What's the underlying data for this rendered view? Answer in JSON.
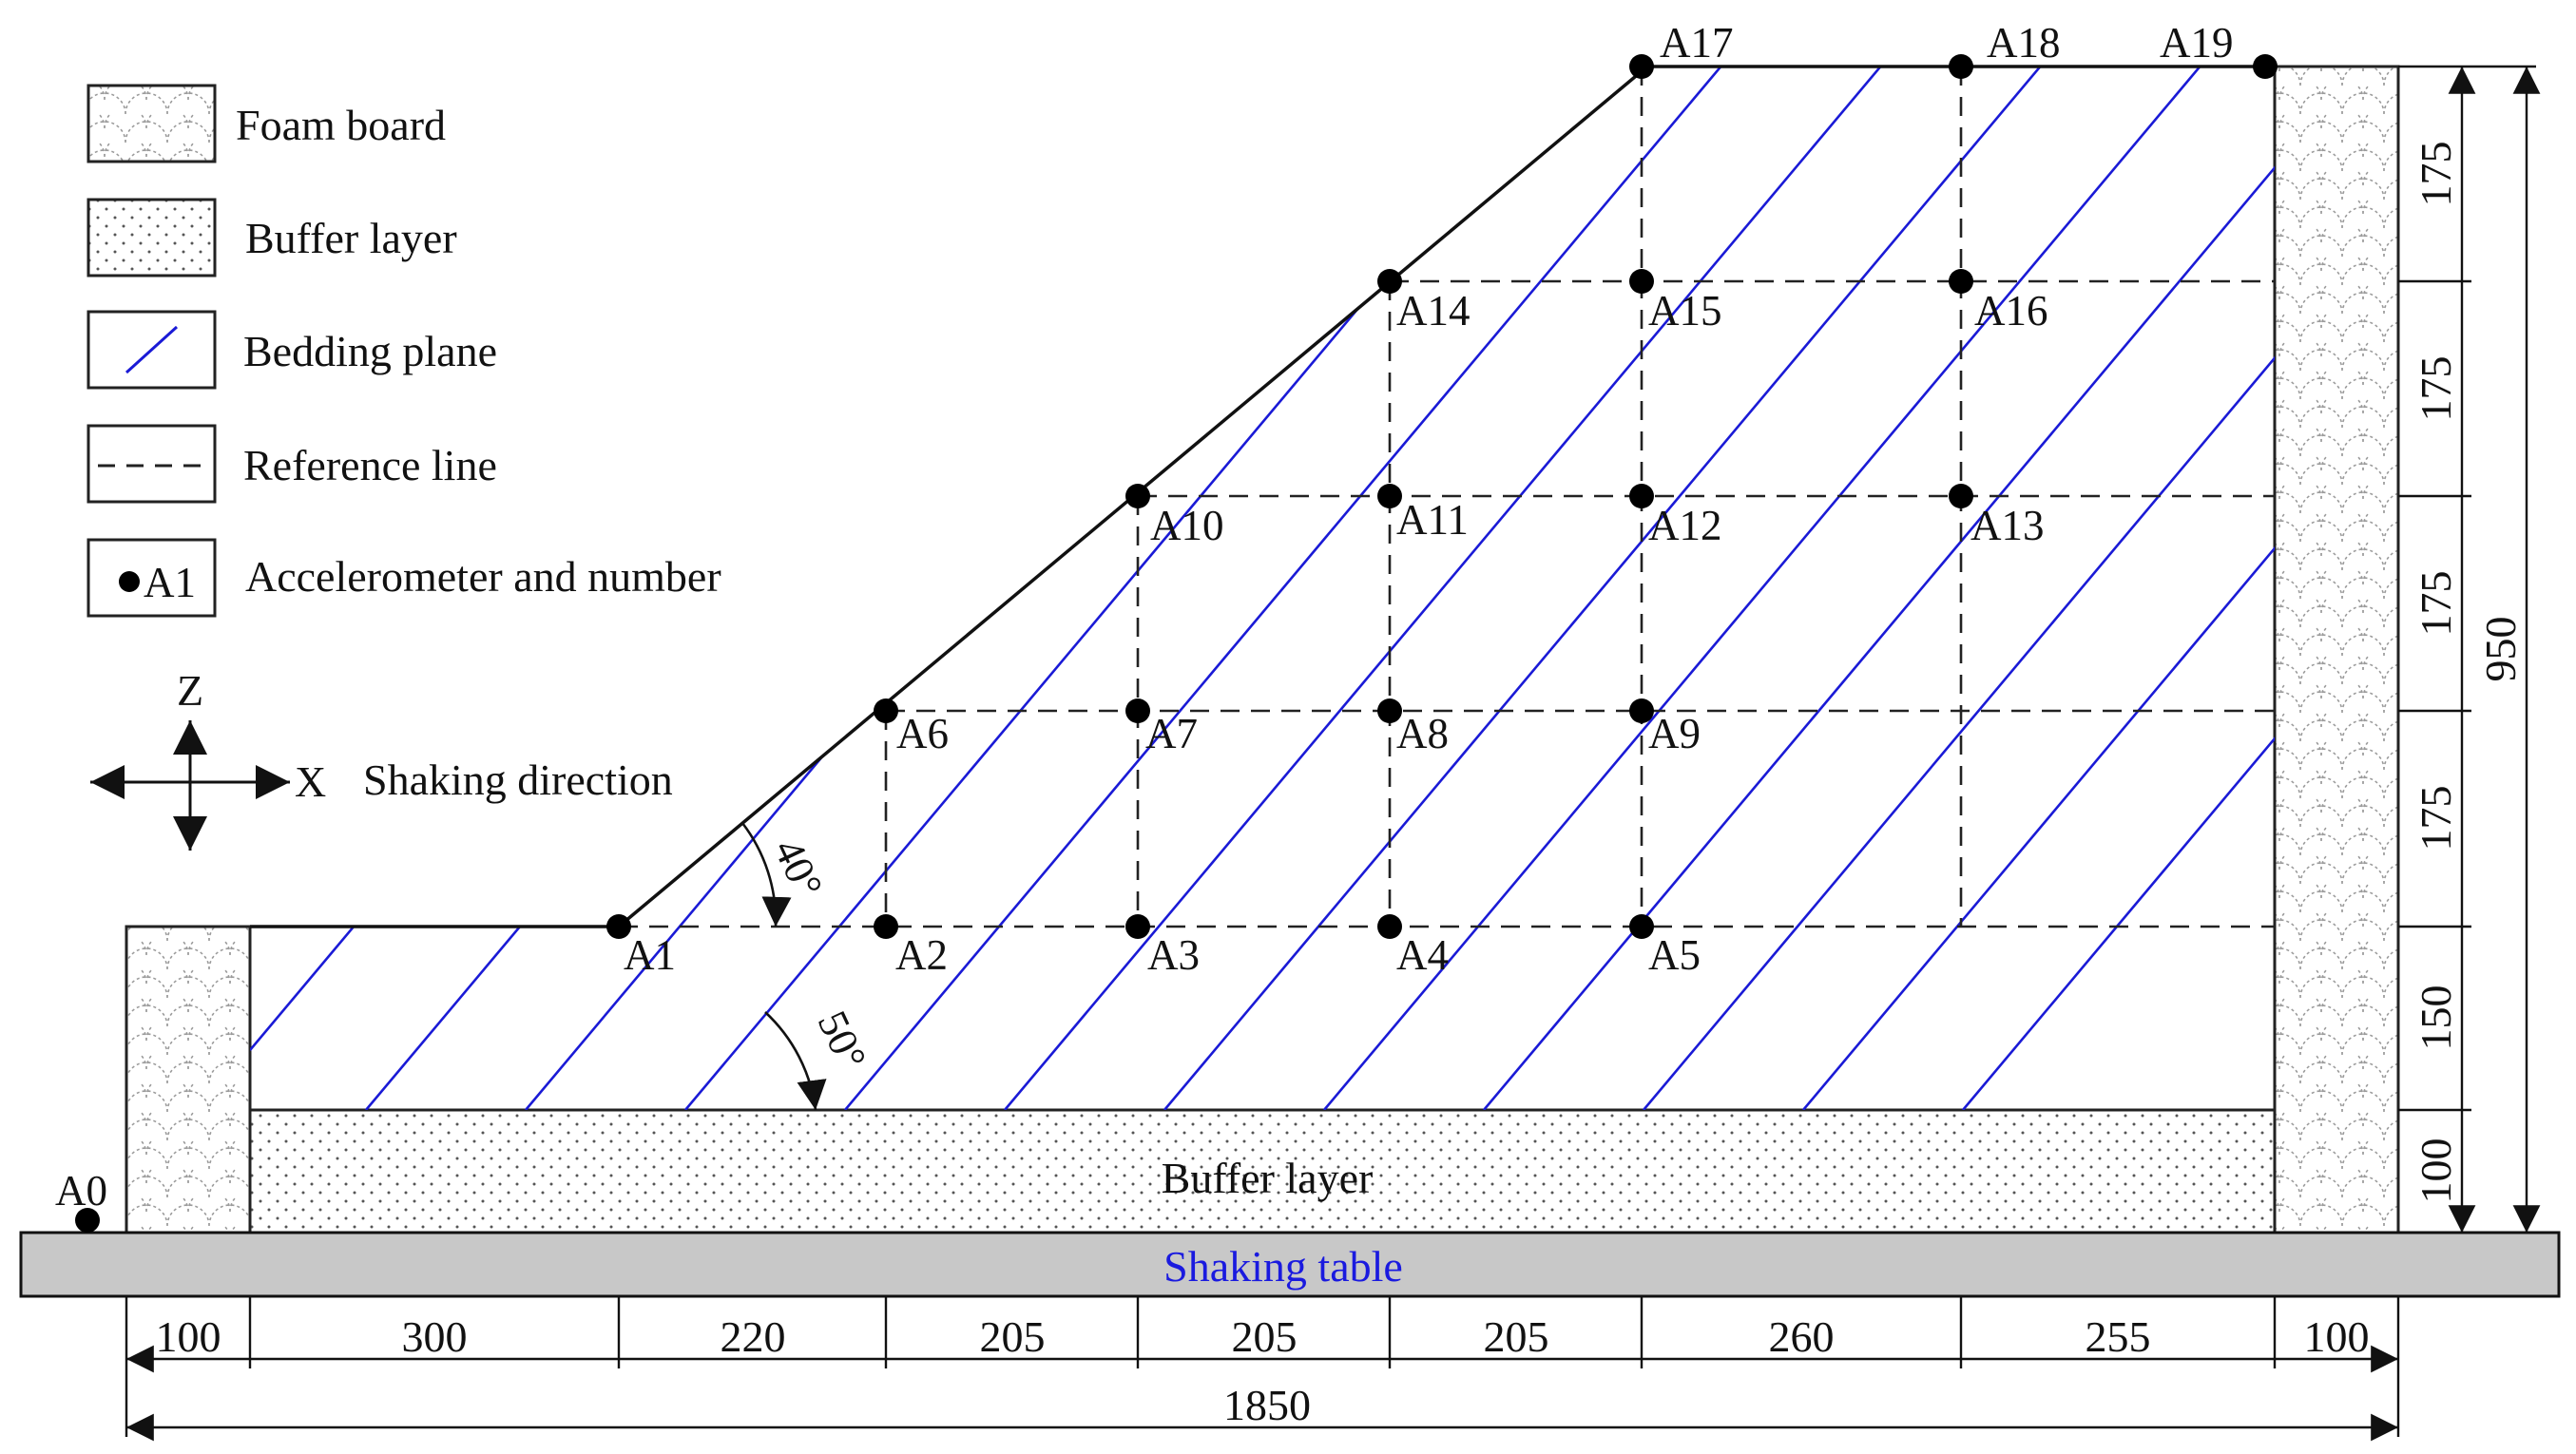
{
  "legend": {
    "foam_board": "Foam board",
    "buffer_layer": "Buffer layer",
    "bedding_plane": "Bedding plane",
    "reference_line": "Reference line",
    "accelerometer_sample": "A1",
    "accelerometer": "Accelerometer and number"
  },
  "axes": {
    "z": "Z",
    "x": "X",
    "shaking_direction": "Shaking direction"
  },
  "angles": {
    "slope_angle": "40°",
    "bedding_angle": "50°"
  },
  "layers": {
    "buffer_layer": "Buffer layer",
    "shaking_table": "Shaking table"
  },
  "colors": {
    "bedding_plane": "#1a1ad6",
    "shaking_table_fill": "#c8c8c8",
    "shaking_table_text": "#1a1adf",
    "accelerometer": "#000000"
  },
  "accelerometers": [
    "A0",
    "A1",
    "A2",
    "A3",
    "A4",
    "A5",
    "A6",
    "A7",
    "A8",
    "A9",
    "A10",
    "A11",
    "A12",
    "A13",
    "A14",
    "A15",
    "A16",
    "A17",
    "A18",
    "A19"
  ],
  "dimensions": {
    "bottom": [
      "100",
      "300",
      "220",
      "205",
      "205",
      "205",
      "260",
      "255",
      "100"
    ],
    "total_width": "1850",
    "right": [
      "175",
      "175",
      "175",
      "175",
      "150",
      "100"
    ],
    "total_height": "950"
  }
}
